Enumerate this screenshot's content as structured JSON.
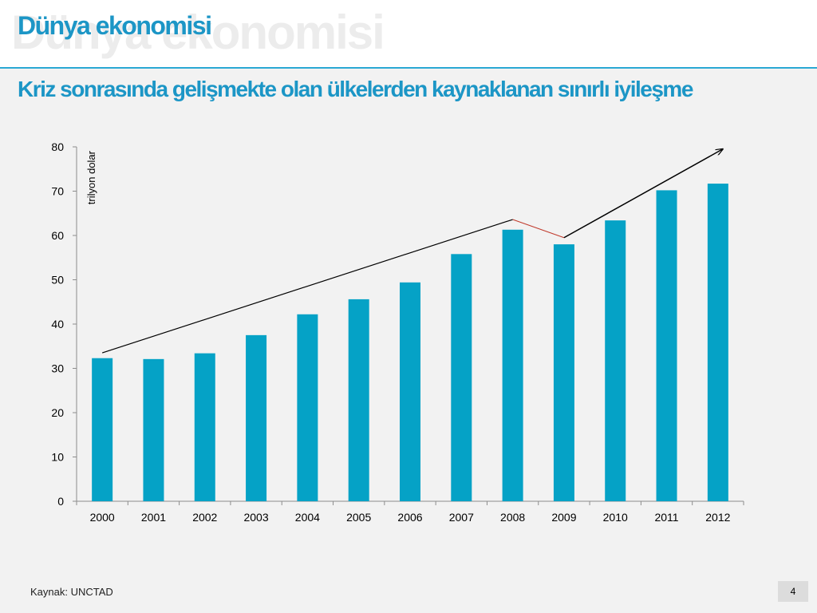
{
  "slide": {
    "title": "Dünya ekonomisi",
    "subtitle": "Kriz sonrasında gelişmekte olan ülkelerden kaynaklanan sınırlı iyileşme",
    "source": "Kaynak: UNCTAD",
    "page_number": "4"
  },
  "colors": {
    "accent": "#1c96c6",
    "bar": "#05a2c6",
    "rule": "#2aa8d4",
    "trend_line": "#000000",
    "decline_line": "#c0392b",
    "background": "#f2f2f2"
  },
  "chart_data": {
    "type": "bar",
    "categories": [
      "2000",
      "2001",
      "2002",
      "2003",
      "2004",
      "2005",
      "2006",
      "2007",
      "2008",
      "2009",
      "2010",
      "2011",
      "2012"
    ],
    "values": [
      32.3,
      32.1,
      33.4,
      37.5,
      42.2,
      45.6,
      49.4,
      55.8,
      61.3,
      58.0,
      63.4,
      70.2,
      71.7
    ],
    "ylabel": "trilyon  dolar",
    "ylim": [
      0,
      80
    ],
    "yticks": [
      0,
      10,
      20,
      30,
      40,
      50,
      60,
      70,
      80
    ],
    "grid": false,
    "legend": false,
    "annotations": [
      {
        "type": "trend-line",
        "from": {
          "x": "2000",
          "y": 33.5
        },
        "to": {
          "x": "2008",
          "y": 63.6
        }
      },
      {
        "type": "decline-line",
        "from": {
          "x": "2008",
          "y": 63.6
        },
        "to": {
          "x": "2009",
          "y": 59.5
        }
      },
      {
        "type": "arrow",
        "from": {
          "x": "2009",
          "y": 59.5
        },
        "to": {
          "x": "2012",
          "y": 79.5
        }
      }
    ]
  }
}
